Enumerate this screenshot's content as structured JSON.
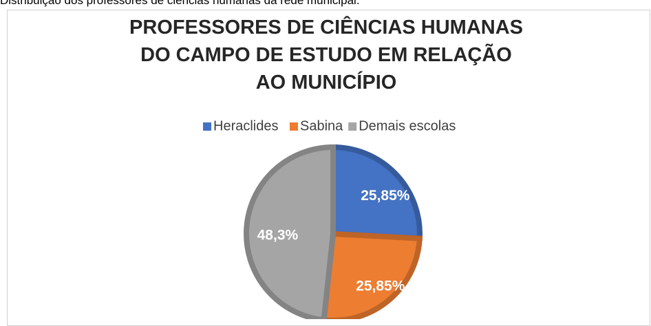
{
  "caption": "Distribuição dos professores de ciências humanas da rede municipal.",
  "chart_data": {
    "type": "pie",
    "title": "PROFESSORES DE CIÊNCIAS HUMANAS DO CAMPO DE ESTUDO EM RELAÇÃO AO MUNICÍPIO",
    "categories": [
      "Heraclides",
      "Sabina",
      "Demais escolas"
    ],
    "values": [
      25.85,
      25.85,
      48.3
    ],
    "value_labels": [
      "25,85%",
      "25,85%",
      "48,3%"
    ],
    "colors": [
      "#4472c4",
      "#ed7d31",
      "#a5a5a5"
    ],
    "legend": "top"
  }
}
